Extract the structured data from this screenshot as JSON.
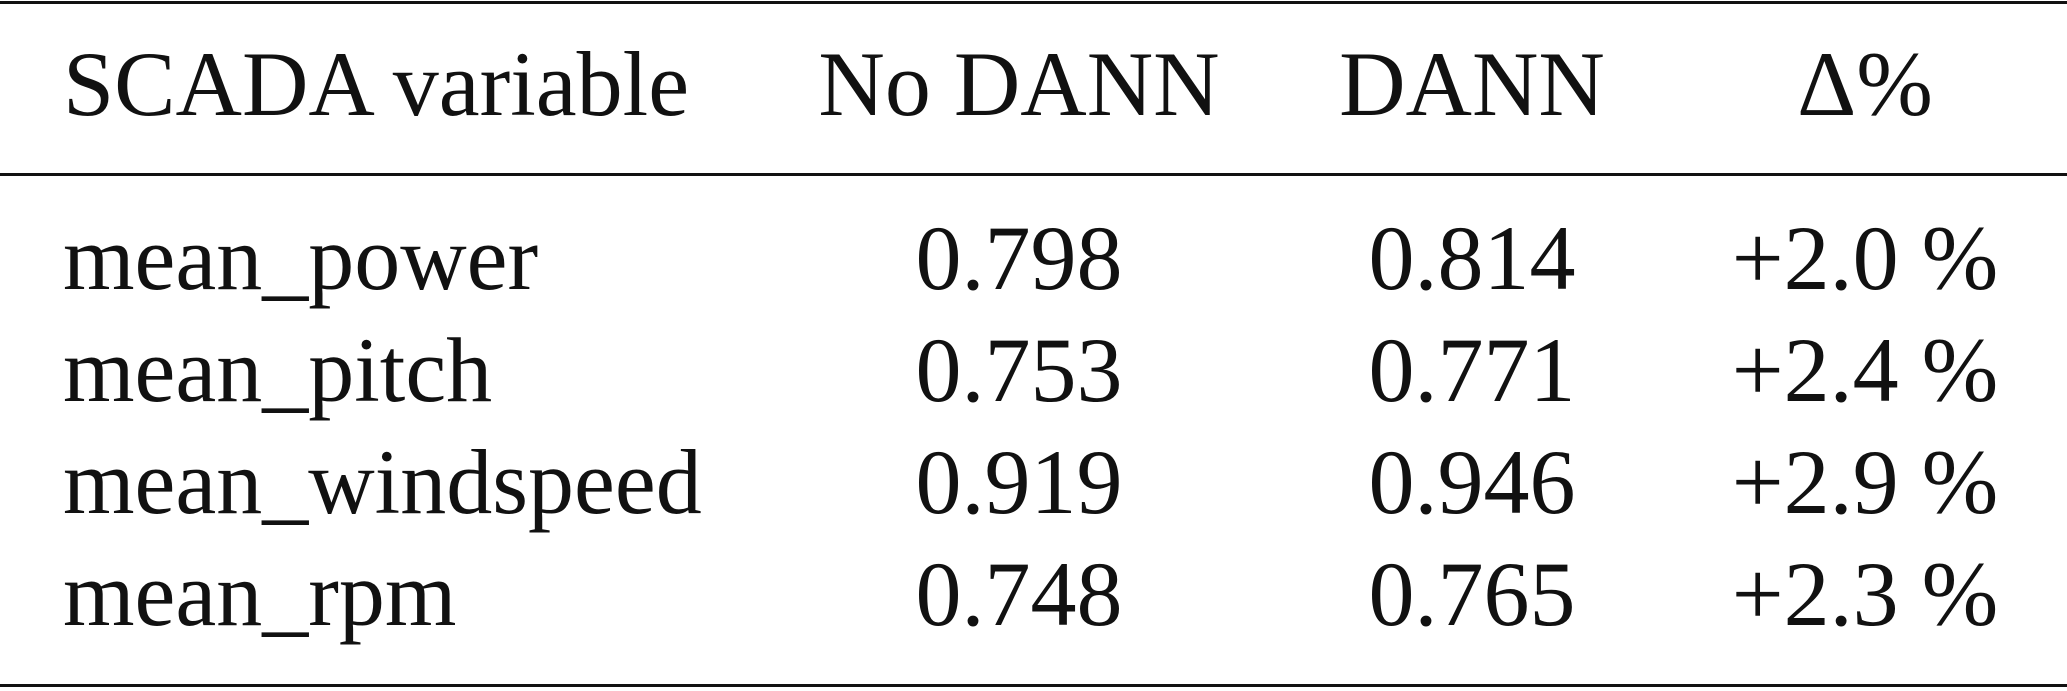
{
  "table": {
    "header": [
      "SCADA variable",
      "No DANN",
      "DANN",
      "Δ%"
    ],
    "rows": [
      [
        "mean_power",
        "0.798",
        "0.814",
        "+2.0 %"
      ],
      [
        "mean_pitch",
        "0.753",
        "0.771",
        "+2.4 %"
      ],
      [
        "mean_windspeed",
        "0.919",
        "0.946",
        "+2.9 %"
      ],
      [
        "mean_rpm",
        "0.748",
        "0.765",
        "+2.3 %"
      ]
    ]
  }
}
